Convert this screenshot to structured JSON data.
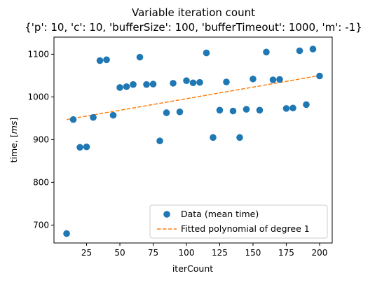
{
  "chart_data": {
    "type": "scatter",
    "title": "Variable iteration count",
    "subtitle": "{'p': 10, 'c': 10, 'bufferSize': 100, 'bufferTimeout': 1000, 'm': -1}",
    "xlabel": "iterCount",
    "ylabel": "time, [ms]",
    "xlim": [
      0.5,
      209.5
    ],
    "ylim": [
      658,
      1140
    ],
    "xticks": [
      25,
      50,
      75,
      100,
      125,
      150,
      175,
      200
    ],
    "yticks": [
      700,
      800,
      900,
      1000,
      1100
    ],
    "grid": false,
    "legend_position": "lower-right",
    "series": [
      {
        "name": "Data (mean time)",
        "kind": "scatter",
        "color": "#1f77b4",
        "x": [
          10,
          15,
          20,
          25,
          30,
          35,
          40,
          45,
          50,
          55,
          60,
          65,
          70,
          75,
          80,
          85,
          90,
          95,
          100,
          105,
          110,
          115,
          120,
          125,
          130,
          135,
          140,
          145,
          150,
          155,
          160,
          165,
          170,
          175,
          180,
          185,
          190,
          195,
          200
        ],
        "y": [
          680,
          947,
          882,
          883,
          952,
          1085,
          1087,
          957,
          1022,
          1024,
          1029,
          1093,
          1029,
          1030,
          897,
          963,
          1032,
          965,
          1038,
          1033,
          1034,
          1103,
          905,
          969,
          1035,
          967,
          905,
          971,
          1042,
          969,
          1105,
          1040,
          1041,
          973,
          974,
          1108,
          982,
          1112,
          1049
        ]
      },
      {
        "name": "Fitted polynomial of degree 1",
        "kind": "line",
        "style": "dashed",
        "color": "#ff7f0e",
        "x": [
          10,
          200
        ],
        "y": [
          947,
          1050
        ]
      }
    ]
  }
}
